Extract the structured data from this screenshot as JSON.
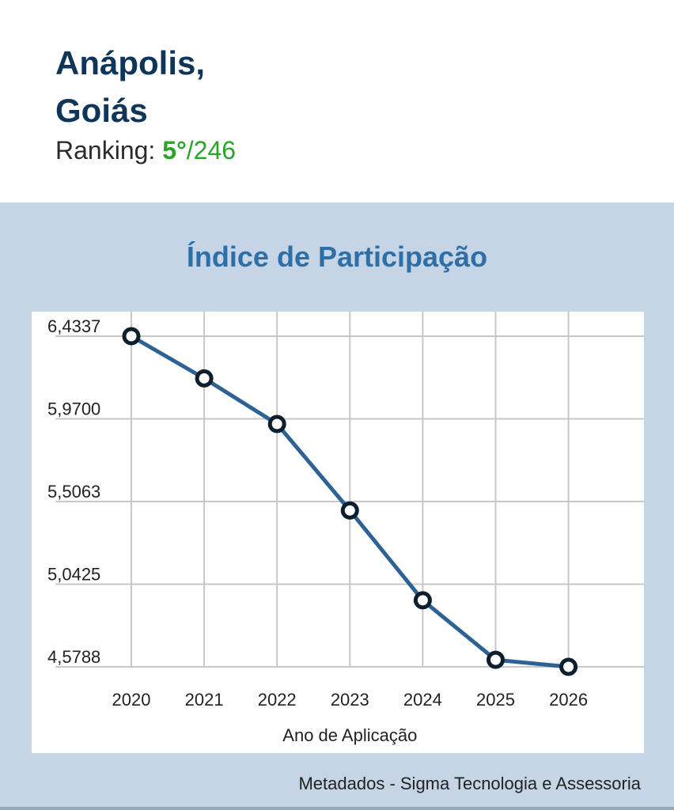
{
  "header": {
    "city_line1": "Anápolis,",
    "city_line2": "Goiás",
    "ranking_label": "Ranking: ",
    "ranking_position": "5°",
    "ranking_total": "/246"
  },
  "footer": {
    "credit": "Metadados - Sigma Tecnologia e Assessoria"
  },
  "colors": {
    "title": "#0f3558",
    "ranking_highlight": "#2aa52a",
    "chart_title": "#2f6fa8",
    "line": "#2d6295",
    "panel": "#c5d5e5",
    "grid": "#c8c8c8",
    "marker_stroke": "#0d1f2d"
  },
  "chart_data": {
    "type": "line",
    "title": "Índice de Participação",
    "xlabel": "Ano de Aplicação",
    "ylabel": "",
    "categories": [
      "2020",
      "2021",
      "2022",
      "2023",
      "2024",
      "2025",
      "2026"
    ],
    "y_ticks": [
      "6,4337",
      "5,9700",
      "5,5063",
      "5,0425",
      "4,5788"
    ],
    "y_tick_values": [
      6.4337,
      5.97,
      5.5063,
      5.0425,
      4.5788
    ],
    "ylim": [
      4.5788,
      6.4337
    ],
    "series": [
      {
        "values": [
          6.4337,
          6.197,
          5.941,
          5.456,
          4.952,
          4.618,
          4.5788
        ]
      }
    ],
    "grid": true,
    "legend": "none"
  }
}
